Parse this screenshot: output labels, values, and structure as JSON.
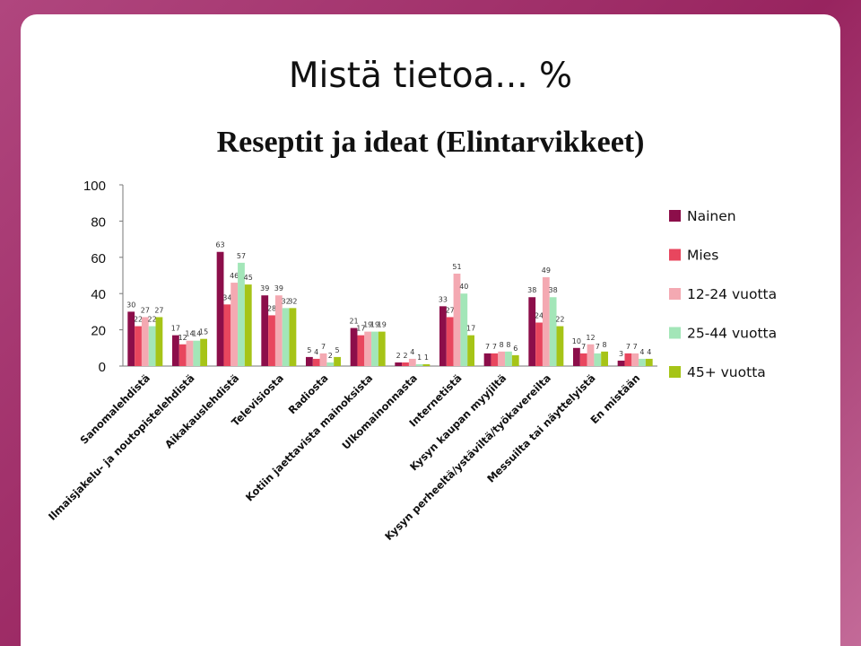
{
  "slide": {
    "title": "Mistä tietoa... %"
  },
  "chart_data": {
    "type": "bar",
    "title": "Reseptit ja ideat (Elintarvikkeet)",
    "ylim": [
      0,
      100
    ],
    "yticks": [
      0,
      20,
      40,
      60,
      80,
      100
    ],
    "grid": false,
    "legend_position": "right",
    "categories": [
      "Sanomalehdistä",
      "Ilmaisjakelu- ja noutopistelehdistä",
      "Aikakauslehdistä",
      "Televisiosta",
      "Radiosta",
      "Kotiin jaettavista mainoksista",
      "Ulkomainonnasta",
      "Internetistä",
      "Kysyn kaupan myyjiltä",
      "Kysyn perheeltä/ystäviltä/työkavereilta",
      "Messuilta tai näyttelyistä",
      "En mistään"
    ],
    "series": [
      {
        "name": "Nainen",
        "color": "#8c0e4a",
        "values": [
          30,
          17,
          63,
          39,
          5,
          21,
          2,
          33,
          7,
          38,
          10,
          3
        ]
      },
      {
        "name": "Mies",
        "color": "#e8465e",
        "values": [
          22,
          12,
          34,
          28,
          4,
          17,
          2,
          27,
          7,
          24,
          7,
          7
        ]
      },
      {
        "name": "12-24 vuotta",
        "color": "#f4a9b2",
        "values": [
          27,
          14,
          46,
          39,
          7,
          19,
          4,
          51,
          8,
          49,
          12,
          7
        ]
      },
      {
        "name": "25-44 vuotta",
        "color": "#a3e6b8",
        "values": [
          22,
          14,
          57,
          32,
          2,
          19,
          1,
          40,
          8,
          38,
          7,
          4
        ]
      },
      {
        "name": "45+ vuotta",
        "color": "#a6c417",
        "values": [
          27,
          15,
          45,
          32,
          5,
          19,
          1,
          17,
          6,
          22,
          8,
          4
        ]
      }
    ]
  }
}
